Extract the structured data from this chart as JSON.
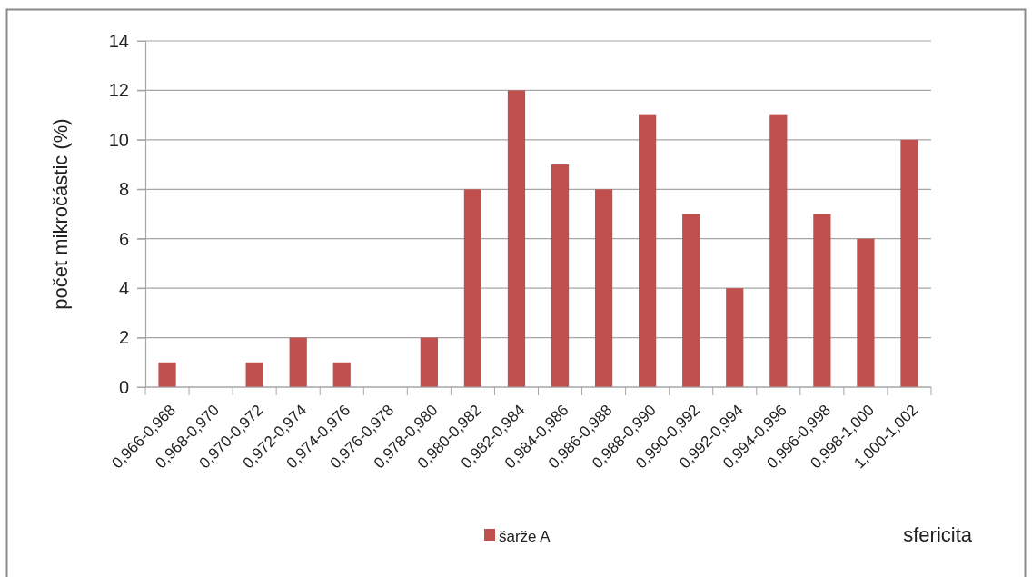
{
  "chart_data": {
    "type": "bar",
    "categories": [
      "0,966-0,968",
      "0,968-0,970",
      "0,970-0,972",
      "0,972-0,974",
      "0,974-0,976",
      "0,976-0,978",
      "0,978-0,980",
      "0,980-0,982",
      "0,982-0,984",
      "0,984-0,986",
      "0,986-0,988",
      "0,988-0,990",
      "0,990-0,992",
      "0,992-0,994",
      "0,994-0,996",
      "0,996-0,998",
      "0,998-1,000",
      "1,000-1,002"
    ],
    "series": [
      {
        "name": "šarže A",
        "color": "#c0504d",
        "values": [
          1,
          0,
          1,
          2,
          1,
          0,
          2,
          8,
          12,
          9,
          8,
          11,
          7,
          4,
          11,
          7,
          6,
          10
        ]
      }
    ],
    "xlabel": "sfericita",
    "ylabel": "počet mikročástic (%)",
    "ylim": [
      0,
      14
    ],
    "yticks": [
      0,
      2,
      4,
      6,
      8,
      10,
      12,
      14
    ],
    "grid": "y",
    "legend": "bottom"
  }
}
